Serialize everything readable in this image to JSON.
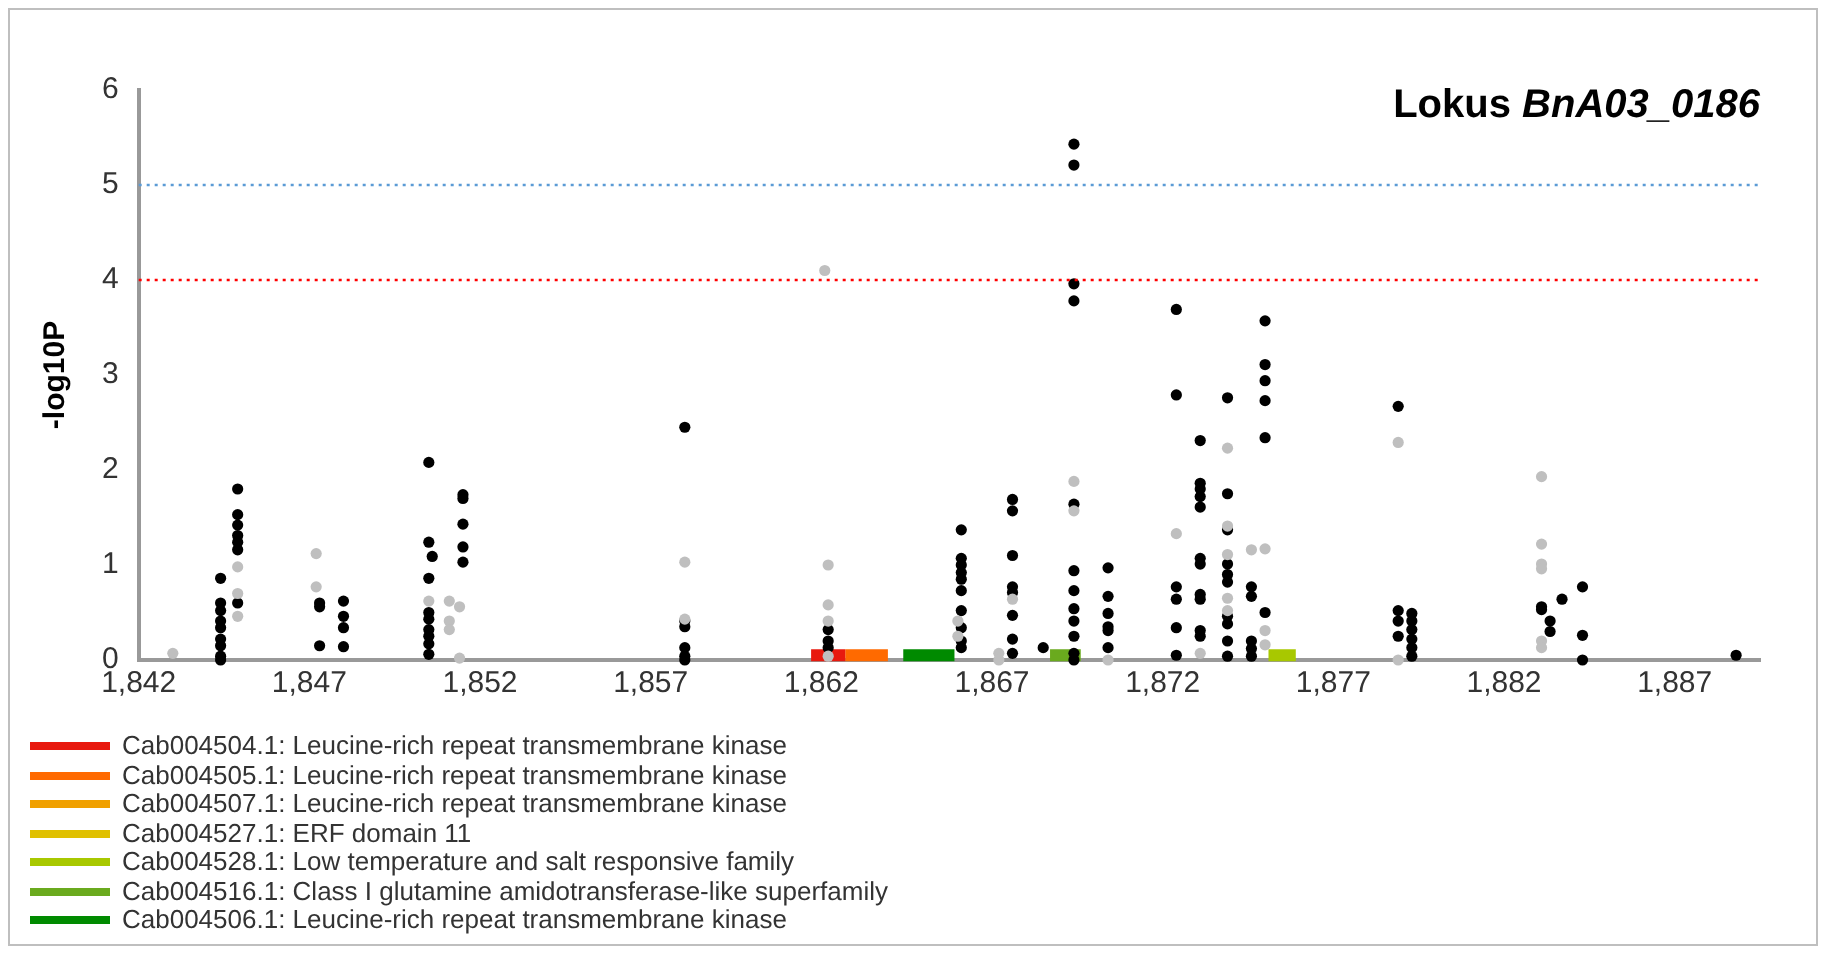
{
  "chart_data": {
    "type": "scatter",
    "title": "Lokus BnA03_0186",
    "ylabel": "-log10P",
    "xlim": [
      1842,
      1889.5
    ],
    "xticks": [
      {
        "value": 1842,
        "label": "1,842"
      },
      {
        "value": 1847,
        "label": "1,847"
      },
      {
        "value": 1852,
        "label": "1,852"
      },
      {
        "value": 1857,
        "label": "1,857"
      },
      {
        "value": 1862,
        "label": "1,862"
      },
      {
        "value": 1867,
        "label": "1,867"
      },
      {
        "value": 1872,
        "label": "1,872"
      },
      {
        "value": 1877,
        "label": "1,877"
      },
      {
        "value": 1882,
        "label": "1,882"
      },
      {
        "value": 1887,
        "label": "1,887"
      }
    ],
    "ylim": [
      0,
      6
    ],
    "yticks": [
      0,
      1,
      2,
      3,
      4,
      5,
      6
    ],
    "grid": false,
    "marker": "circle",
    "legend": "bottom left",
    "ref_lines": [
      {
        "axis": "y",
        "value": 5,
        "color": "#5b9bd5",
        "line_style": "dotted"
      },
      {
        "axis": "y",
        "value": 4,
        "color": "#ff0000",
        "line_style": "dotted"
      }
    ],
    "series": [
      {
        "color": "#bfbfbf",
        "x": [
          1843.0,
          1844.9,
          1844.9,
          1844.9,
          1847.2,
          1847.2,
          1850.5,
          1851.1,
          1851.1,
          1851.1,
          1851.4,
          1851.4,
          1858.0,
          1858.0,
          1862.1,
          1862.2,
          1862.2,
          1862.2,
          1862.2,
          1866.0,
          1866.0,
          1867.2,
          1867.2,
          1867.6,
          1869.4,
          1869.4,
          1870.4,
          1872.4,
          1873.1,
          1873.9,
          1873.9,
          1873.9,
          1873.9,
          1873.9,
          1874.6,
          1875.0,
          1875.0,
          1875.0,
          1878.9,
          1878.9,
          1883.1,
          1883.1,
          1883.1,
          1883.1,
          1883.1,
          1883.1
        ],
        "values": [
          0.07,
          0.98,
          0.7,
          0.46,
          1.12,
          0.77,
          0.62,
          0.62,
          0.41,
          0.32,
          0.56,
          0.02,
          1.03,
          0.43,
          4.1,
          1.0,
          0.58,
          0.41,
          0.04,
          0.41,
          0.25,
          0.07,
          0.0,
          0.64,
          1.88,
          1.57,
          0.0,
          1.33,
          0.07,
          2.23,
          1.41,
          1.11,
          0.65,
          0.52,
          1.16,
          1.17,
          0.31,
          0.16,
          2.29,
          0.0,
          1.93,
          1.22,
          1.01,
          0.96,
          0.2,
          0.13
        ]
      },
      {
        "color": "#000000",
        "x": [
          1844.4,
          1844.4,
          1844.4,
          1844.4,
          1844.4,
          1844.4,
          1844.4,
          1844.4,
          1844.4,
          1844.9,
          1844.9,
          1844.9,
          1844.9,
          1844.9,
          1844.9,
          1844.9,
          1847.3,
          1847.3,
          1847.3,
          1848.0,
          1848.0,
          1848.0,
          1848.0,
          1850.5,
          1850.5,
          1850.6,
          1850.5,
          1850.5,
          1850.5,
          1850.5,
          1850.5,
          1850.5,
          1850.5,
          1851.5,
          1851.5,
          1851.5,
          1851.5,
          1851.5,
          1858.0,
          1858.0,
          1858.0,
          1858.0,
          1858.0,
          1858.0,
          1862.2,
          1862.2,
          1862.2,
          1866.1,
          1866.1,
          1866.1,
          1866.1,
          1866.1,
          1866.1,
          1866.1,
          1866.1,
          1866.1,
          1866.1,
          1867.6,
          1867.6,
          1867.6,
          1867.6,
          1867.6,
          1867.6,
          1867.6,
          1867.6,
          1868.5,
          1869.4,
          1869.4,
          1869.4,
          1869.4,
          1869.4,
          1869.4,
          1869.4,
          1869.4,
          1869.4,
          1869.4,
          1869.4,
          1869.4,
          1870.4,
          1870.4,
          1870.4,
          1870.4,
          1870.4,
          1870.4,
          1872.4,
          1872.4,
          1872.4,
          1872.4,
          1872.4,
          1872.4,
          1873.1,
          1873.1,
          1873.1,
          1873.1,
          1873.1,
          1873.1,
          1873.1,
          1873.1,
          1873.1,
          1873.1,
          1873.1,
          1873.9,
          1873.9,
          1873.9,
          1873.9,
          1873.9,
          1873.9,
          1873.9,
          1873.9,
          1873.9,
          1873.9,
          1874.6,
          1874.6,
          1874.6,
          1874.6,
          1874.6,
          1875.0,
          1875.0,
          1875.0,
          1875.0,
          1875.0,
          1875.0,
          1878.9,
          1878.9,
          1878.9,
          1878.9,
          1879.3,
          1879.3,
          1879.3,
          1879.3,
          1879.3,
          1879.3,
          1883.1,
          1883.1,
          1883.35,
          1883.35,
          1883.7,
          1884.3,
          1884.3,
          1884.3,
          1888.8
        ],
        "values": [
          0.86,
          0.6,
          0.52,
          0.41,
          0.34,
          0.22,
          0.15,
          0.04,
          0.0,
          1.8,
          1.53,
          1.42,
          1.31,
          1.24,
          1.16,
          0.6,
          0.6,
          0.56,
          0.15,
          0.62,
          0.46,
          0.34,
          0.14,
          2.08,
          1.24,
          1.09,
          0.86,
          0.5,
          0.43,
          0.32,
          0.25,
          0.17,
          0.06,
          1.74,
          1.7,
          1.43,
          1.19,
          1.03,
          2.45,
          0.41,
          0.35,
          0.13,
          0.04,
          0.0,
          0.32,
          0.2,
          0.13,
          1.37,
          1.07,
          1.0,
          0.92,
          0.85,
          0.73,
          0.52,
          0.34,
          0.2,
          0.13,
          1.69,
          1.57,
          1.1,
          0.77,
          0.71,
          0.47,
          0.22,
          0.07,
          0.13,
          5.43,
          5.21,
          3.96,
          3.78,
          1.64,
          0.94,
          0.73,
          0.54,
          0.41,
          0.25,
          0.07,
          0.0,
          0.97,
          0.67,
          0.49,
          0.35,
          0.31,
          0.13,
          3.69,
          2.79,
          0.77,
          0.64,
          0.34,
          0.05,
          2.31,
          1.86,
          1.8,
          1.72,
          1.61,
          1.07,
          1.01,
          0.69,
          0.64,
          0.31,
          0.25,
          2.76,
          1.75,
          1.37,
          1.01,
          0.9,
          0.82,
          0.46,
          0.38,
          0.2,
          0.04,
          0.77,
          0.67,
          0.2,
          0.12,
          0.04,
          3.57,
          3.11,
          2.94,
          2.73,
          2.34,
          0.5,
          2.67,
          0.52,
          0.41,
          0.25,
          0.49,
          0.41,
          0.32,
          0.22,
          0.13,
          0.04,
          0.56,
          0.53,
          0.41,
          0.3,
          0.64,
          0.77,
          0.26,
          0.0,
          0.05
        ]
      },
      {
        "type": "line",
        "name": "Cab004504.1: Leucine-rich repeat transmembrane kinase",
        "color": "#e8190e",
        "marker": "none",
        "x": [
          1861.7,
          1862.7
        ],
        "values": [
          0.05,
          0.05
        ]
      },
      {
        "type": "line",
        "name": "Cab004505.1: Leucine-rich repeat transmembrane kinase",
        "color": "#ff6a00",
        "marker": "none",
        "x": [
          1862.7,
          1863.95
        ],
        "values": [
          0.05,
          0.05
        ]
      },
      {
        "type": "line",
        "name": "Cab004507.1: Leucine-rich repeat transmembrane kinase",
        "color": "#f0a000",
        "marker": "none"
      },
      {
        "type": "line",
        "name": "Cab004527.1: ERF domain 11",
        "color": "#e0c000",
        "marker": "none"
      },
      {
        "type": "line",
        "name": "Cab004528.1: Low temperature and salt responsive family",
        "color": "#a8c800",
        "marker": "none",
        "x": [
          1875.1,
          1875.9
        ],
        "values": [
          0.05,
          0.05
        ]
      },
      {
        "type": "line",
        "name": "Cab004516.1: Class I glutamine amidotransferase-like superfamily",
        "color": "#6aaa1e",
        "marker": "none",
        "x": [
          1868.7,
          1869.6
        ],
        "values": [
          0.05,
          0.05
        ]
      },
      {
        "type": "line",
        "name": "Cab004506.1: Leucine-rich repeat transmembrane kinase",
        "color": "#008a00",
        "marker": "none",
        "x": [
          1864.4,
          1865.9
        ],
        "values": [
          0.05,
          0.05
        ]
      }
    ]
  }
}
